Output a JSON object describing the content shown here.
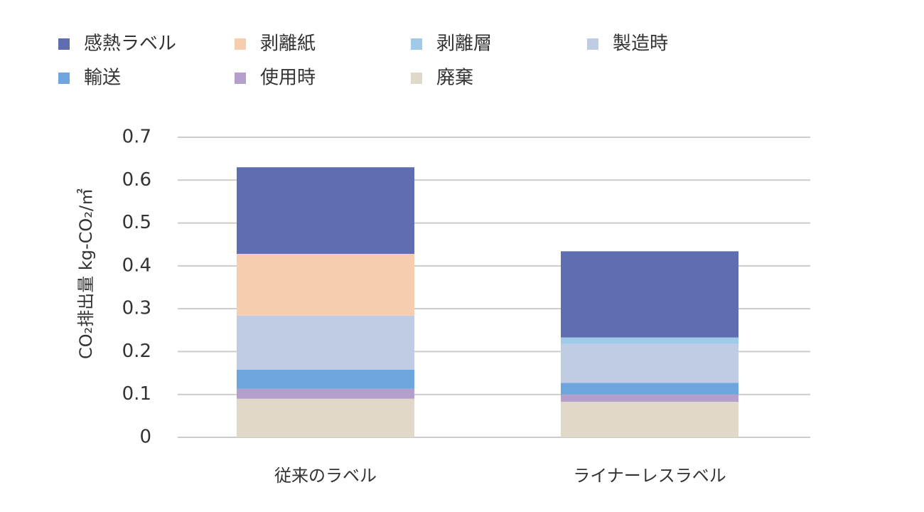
{
  "chart_data": {
    "type": "stacked_bar",
    "y_label": "CO₂排出量 kg-CO₂/㎡",
    "categories": [
      "従来のラベル",
      "ライナーレスラベル"
    ],
    "series": [
      {
        "name": "感熱ラベル",
        "color": "#5f6eb0",
        "values": [
          0.202,
          0.201
        ]
      },
      {
        "name": "剥離紙",
        "color": "#f7cdb0",
        "values": [
          0.144,
          0
        ]
      },
      {
        "name": "剥離層",
        "color": "#9fcbe8",
        "values": [
          0,
          0.015
        ]
      },
      {
        "name": "製造時",
        "color": "#c0cce3",
        "values": [
          0.126,
          0.091
        ]
      },
      {
        "name": "輸送",
        "color": "#6fa5dd",
        "values": [
          0.045,
          0.027
        ]
      },
      {
        "name": "使用時",
        "color": "#b49fcc",
        "values": [
          0.023,
          0.017
        ]
      },
      {
        "name": "廃棄",
        "color": "#e0d8c8",
        "values": [
          0.09,
          0.083
        ]
      }
    ],
    "ylim": [
      0,
      0.7
    ],
    "yticks": [
      0,
      0.1,
      0.2,
      0.3,
      0.4,
      0.5,
      0.6,
      0.7
    ],
    "grid": true
  }
}
